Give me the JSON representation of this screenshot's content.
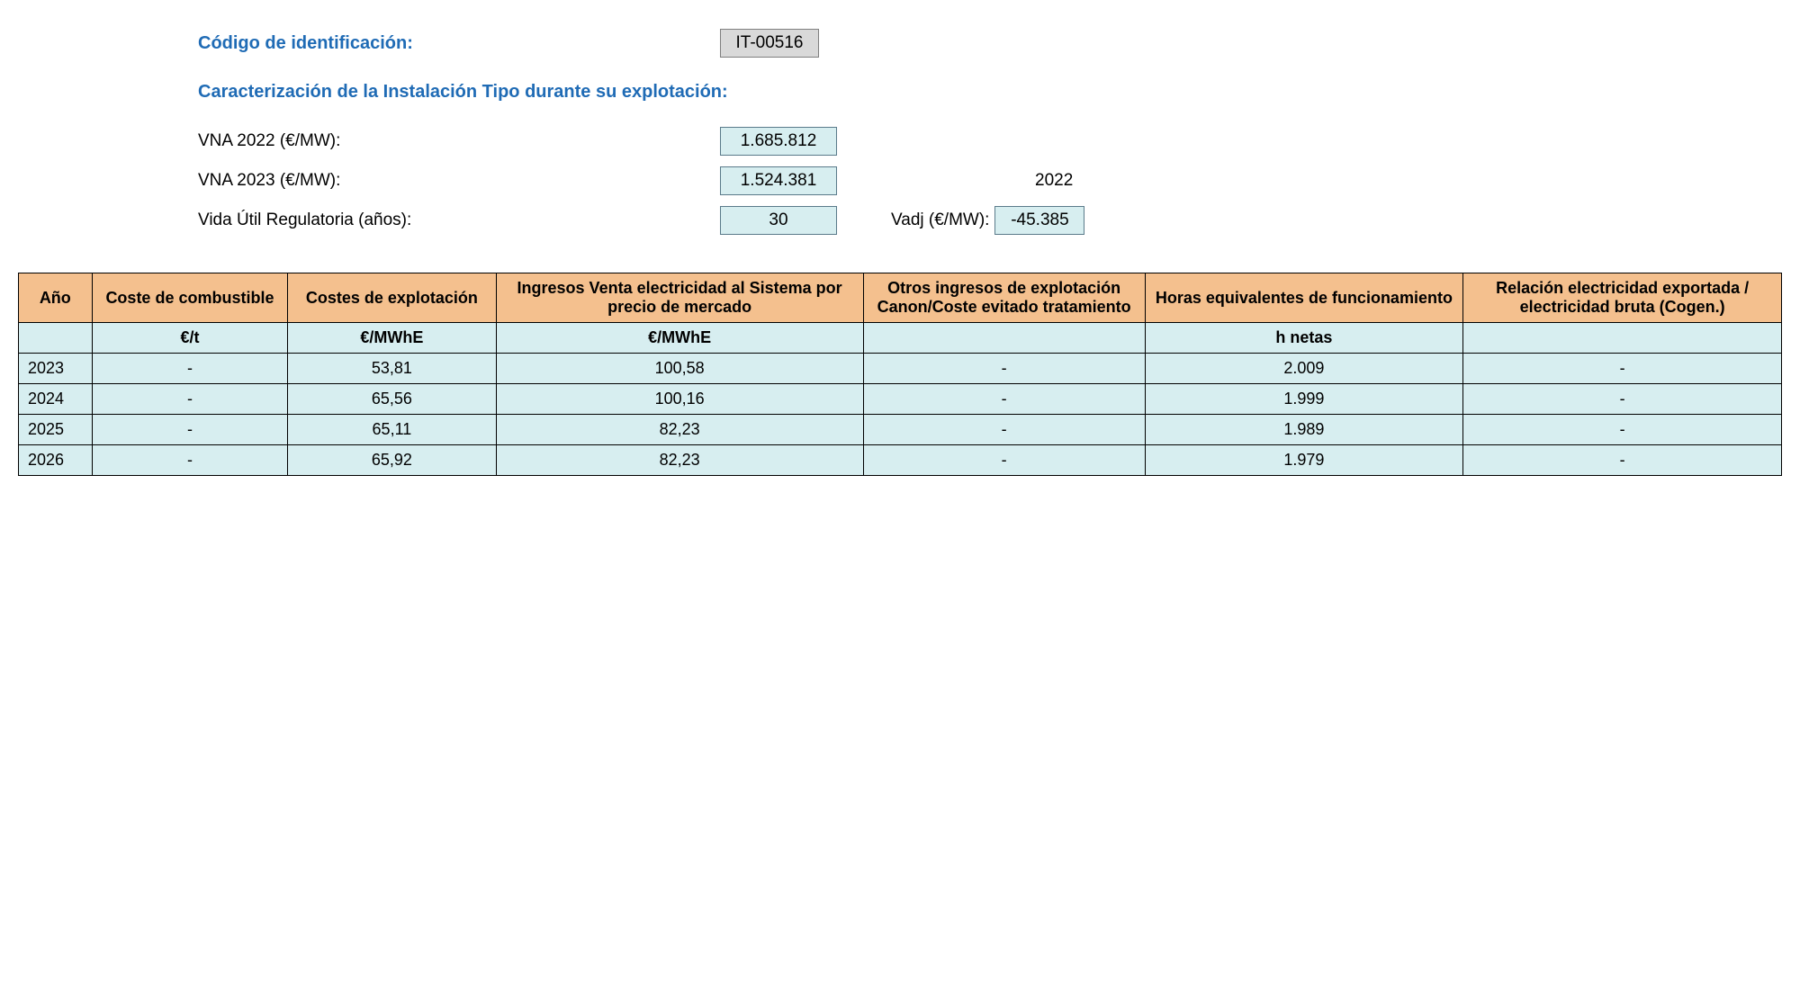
{
  "header": {
    "id_label": "Código de identificación:",
    "id_value": "IT-00516",
    "section_title": "Caracterización de la Instalación Tipo durante su explotación:",
    "rows": [
      {
        "label": "VNA 2022 (€/MW):",
        "value": "1.685.812",
        "side_label": "",
        "side_value": ""
      },
      {
        "label": "VNA 2023 (€/MW):",
        "value": "1.524.381",
        "side_label": "2022",
        "side_value": ""
      },
      {
        "label": "Vida Útil Regulatoria (años):",
        "value": "30",
        "side_label": "Vadj (€/MW):",
        "side_value": "-45.385"
      }
    ]
  },
  "table": {
    "columns": [
      "Año",
      "Coste de combustible",
      "Costes de explotación",
      "Ingresos Venta electricidad al Sistema por precio de mercado",
      "Otros ingresos de explotación Canon/Coste evitado tratamiento",
      "Horas equivalentes de funcionamiento",
      "Relación electricidad exportada / electricidad bruta\n(Cogen.)"
    ],
    "units": [
      "",
      "€/t",
      "€/MWhE",
      "€/MWhE",
      "",
      "h netas",
      ""
    ],
    "rows": [
      {
        "year": "2023",
        "cells": [
          "-",
          "53,81",
          "100,58",
          "-",
          "2.009",
          "-"
        ]
      },
      {
        "year": "2024",
        "cells": [
          "-",
          "65,56",
          "100,16",
          "-",
          "1.999",
          "-"
        ]
      },
      {
        "year": "2025",
        "cells": [
          "-",
          "65,11",
          "82,23",
          "-",
          "1.989",
          "-"
        ]
      },
      {
        "year": "2026",
        "cells": [
          "-",
          "65,92",
          "82,23",
          "-",
          "1.979",
          "-"
        ]
      }
    ]
  }
}
